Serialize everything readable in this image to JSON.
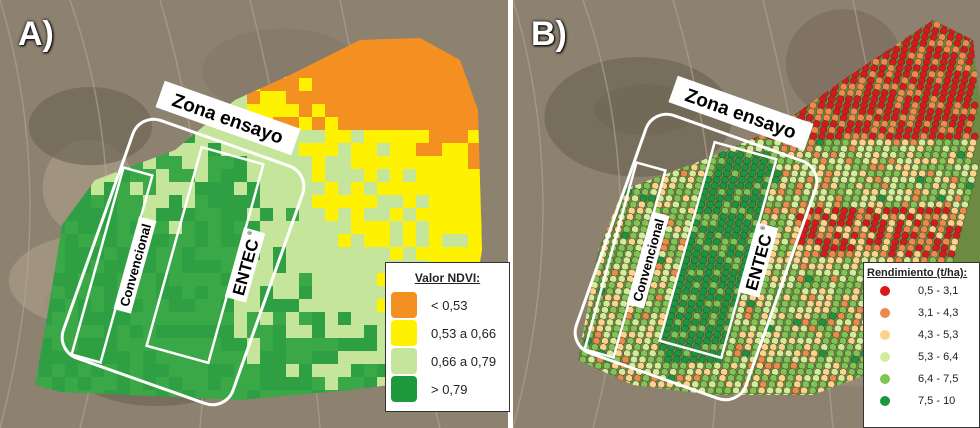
{
  "panels": [
    {
      "label": "A)",
      "zone_label": "Zona ensayo",
      "strip_left": "Convencional",
      "strip_right": "ENTEC",
      "strip_right_mark": "®"
    },
    {
      "label": "B)",
      "zone_label": "Zona ensayo",
      "strip_left": "Convencional",
      "strip_right": "ENTEC",
      "strip_right_mark": "®"
    }
  ],
  "legend_ndvi": {
    "title": "Valor NDVI:",
    "items": [
      {
        "label": "< 0,53",
        "color": "#f39021"
      },
      {
        "label": "0,53 a 0,66",
        "color": "#fff200"
      },
      {
        "label": "0,66 a 0,79",
        "color": "#c5e59a"
      },
      {
        "label": "> 0,79",
        "color": "#1e9a3c"
      }
    ]
  },
  "legend_yield": {
    "title": "Rendimiento (t/ha):",
    "items": [
      {
        "label": "0,5 - 3,1",
        "color": "#d7191c"
      },
      {
        "label": "3,1 - 4,3",
        "color": "#ec8a4b"
      },
      {
        "label": "4,3 - 5,3",
        "color": "#fdd28a"
      },
      {
        "label": "5,3 - 6,4",
        "color": "#d4ec9a"
      },
      {
        "label": "6,4 - 7,5",
        "color": "#80c455"
      },
      {
        "label": "7,5 - 10",
        "color": "#1a9641"
      }
    ]
  }
}
